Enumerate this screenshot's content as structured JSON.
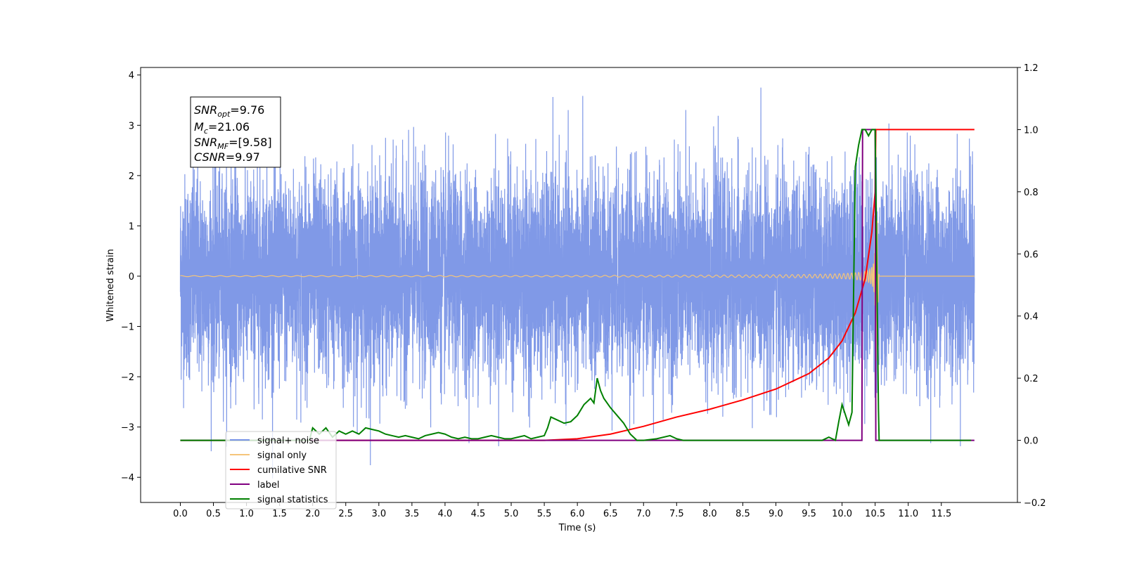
{
  "chart_data": {
    "type": "line",
    "xlabel": "Time (s)",
    "ylabel": "Whitened strain",
    "xlim": [
      -0.6,
      12.65
    ],
    "ylim_left": [
      -4.5,
      4.15
    ],
    "ylim_right": [
      -0.2,
      1.2
    ],
    "x_ticks": [
      "0.0",
      "0.5",
      "1.0",
      "1.5",
      "2.0",
      "2.5",
      "3.0",
      "3.5",
      "4.0",
      "4.5",
      "5.0",
      "5.5",
      "6.0",
      "6.5",
      "7.0",
      "7.5",
      "8.0",
      "8.5",
      "9.0",
      "9.5",
      "10.0",
      "10.5",
      "11.0",
      "11.5"
    ],
    "y_ticks_left": [
      "−4",
      "−3",
      "−2",
      "−1",
      "0",
      "1",
      "2",
      "3",
      "4"
    ],
    "y_ticks_right": [
      "−0.2",
      "0.0",
      "0.2",
      "0.4",
      "0.6",
      "0.8",
      "1.0",
      "1.2"
    ],
    "grid": false,
    "legend_position": "lower-left",
    "annotation": [
      {
        "base": "SNR",
        "sub": "opt",
        "rest": "=9.76"
      },
      {
        "base": "M",
        "sub": "c",
        "rest": "=21.06"
      },
      {
        "base": "SNR",
        "sub": "MF",
        "rest": "=[9.58]"
      },
      {
        "base": "CSNR",
        "sub": "",
        "rest": "=9.97"
      }
    ],
    "series": [
      {
        "name": "signal+ noise",
        "color": "#7994e6",
        "axis": "left",
        "description_kind": "noise",
        "t_range": [
          0.0,
          12.0
        ],
        "amplitude_std": 1.0
      },
      {
        "name": "signal only",
        "color": "#f5c57a",
        "axis": "left",
        "description_kind": "chirp",
        "t_merger": 10.5,
        "peak_amplitude": 2.3
      },
      {
        "name": "cumilative SNR",
        "color": "#ff0000",
        "axis": "right",
        "x": [
          0.0,
          5.5,
          6.0,
          6.5,
          7.0,
          7.5,
          8.0,
          8.5,
          9.0,
          9.5,
          9.8,
          10.0,
          10.2,
          10.35,
          10.45,
          10.5,
          10.51,
          12.0
        ],
        "values": [
          0.0,
          0.0,
          0.005,
          0.02,
          0.045,
          0.075,
          0.1,
          0.13,
          0.165,
          0.215,
          0.265,
          0.32,
          0.41,
          0.52,
          0.67,
          0.8,
          1.0,
          1.0
        ]
      },
      {
        "name": "label",
        "color": "#800080",
        "axis": "right",
        "x": [
          0.0,
          10.3,
          10.31,
          10.5,
          10.51,
          12.0
        ],
        "values": [
          0.0,
          0.0,
          1.0,
          1.0,
          0.0,
          0.0
        ]
      },
      {
        "name": "signal statistics",
        "color": "#008000",
        "axis": "right",
        "x": [
          0.0,
          1.95,
          2.0,
          2.1,
          2.2,
          2.3,
          2.4,
          2.5,
          2.6,
          2.7,
          2.8,
          2.9,
          3.0,
          3.1,
          3.2,
          3.3,
          3.4,
          3.5,
          3.6,
          3.7,
          3.8,
          3.9,
          4.0,
          4.1,
          4.2,
          4.3,
          4.4,
          4.5,
          4.6,
          4.7,
          4.8,
          4.9,
          5.0,
          5.1,
          5.2,
          5.3,
          5.4,
          5.5,
          5.55,
          5.6,
          5.7,
          5.8,
          5.9,
          6.0,
          6.1,
          6.2,
          6.25,
          6.3,
          6.35,
          6.4,
          6.5,
          6.6,
          6.7,
          6.8,
          6.9,
          7.0,
          7.2,
          7.4,
          7.5,
          7.6,
          7.7,
          7.8,
          9.7,
          9.8,
          9.9,
          9.95,
          10.0,
          10.1,
          10.15,
          10.2,
          10.25,
          10.3,
          10.35,
          10.4,
          10.45,
          10.5,
          10.55,
          10.56,
          11.95
        ],
        "values": [
          0.0,
          0.0,
          0.04,
          0.02,
          0.04,
          0.01,
          0.03,
          0.02,
          0.03,
          0.02,
          0.04,
          0.035,
          0.03,
          0.02,
          0.015,
          0.01,
          0.015,
          0.01,
          0.005,
          0.015,
          0.02,
          0.025,
          0.02,
          0.01,
          0.005,
          0.01,
          0.005,
          0.005,
          0.01,
          0.015,
          0.01,
          0.005,
          0.005,
          0.01,
          0.015,
          0.005,
          0.01,
          0.015,
          0.04,
          0.075,
          0.065,
          0.055,
          0.06,
          0.08,
          0.115,
          0.135,
          0.12,
          0.2,
          0.16,
          0.135,
          0.105,
          0.08,
          0.055,
          0.02,
          0.0,
          0.0,
          0.005,
          0.015,
          0.005,
          0.0,
          0.0,
          0.0,
          0.0,
          0.01,
          0.0,
          0.06,
          0.115,
          0.05,
          0.09,
          0.88,
          0.95,
          1.0,
          1.0,
          0.98,
          1.0,
          1.0,
          0.1,
          0.0,
          0.0
        ]
      }
    ]
  }
}
